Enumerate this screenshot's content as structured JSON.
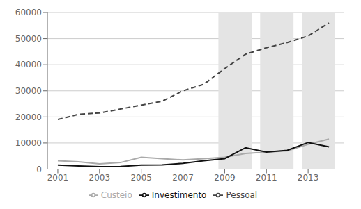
{
  "chart_data": {
    "type": "line",
    "x": [
      2001,
      2002,
      2003,
      2004,
      2005,
      2006,
      2007,
      2008,
      2009,
      2010,
      2011,
      2012,
      2013,
      2014
    ],
    "series": [
      {
        "name": "Pessoal",
        "color": "#444444",
        "line_style": "dashed",
        "values": [
          19000,
          21000,
          21500,
          23000,
          24500,
          26000,
          30000,
          32500,
          38500,
          44000,
          46500,
          48500,
          51000,
          56000
        ]
      },
      {
        "name": "Custeio",
        "color": "#aaaaaa",
        "line_style": "solid",
        "values": [
          3200,
          2800,
          2000,
          2500,
          4500,
          4000,
          3500,
          4000,
          4500,
          6000,
          6500,
          7000,
          9500,
          11500
        ]
      },
      {
        "name": "Investimento",
        "color": "#111111",
        "line_style": "solid",
        "values": [
          1500,
          1200,
          900,
          1000,
          1500,
          1600,
          2200,
          3200,
          4000,
          8200,
          6500,
          7200,
          10200,
          8500
        ]
      }
    ],
    "bands": [
      {
        "x": [
          2008.7,
          2010.3
        ],
        "color": "#e4e4e4"
      },
      {
        "x": [
          2010.7,
          2012.3
        ],
        "color": "#e4e4e4"
      },
      {
        "x": [
          2012.7,
          2014.3
        ],
        "color": "#e4e4e4"
      }
    ],
    "xlim": [
      2000.5,
      2014.7
    ],
    "xticks": [
      2001,
      2003,
      2005,
      2007,
      2009,
      2011,
      2013
    ],
    "ylim": [
      0,
      60000
    ],
    "yticks": [
      0,
      10000,
      20000,
      30000,
      40000,
      50000,
      60000
    ],
    "grid": true,
    "legend": "bottom"
  }
}
